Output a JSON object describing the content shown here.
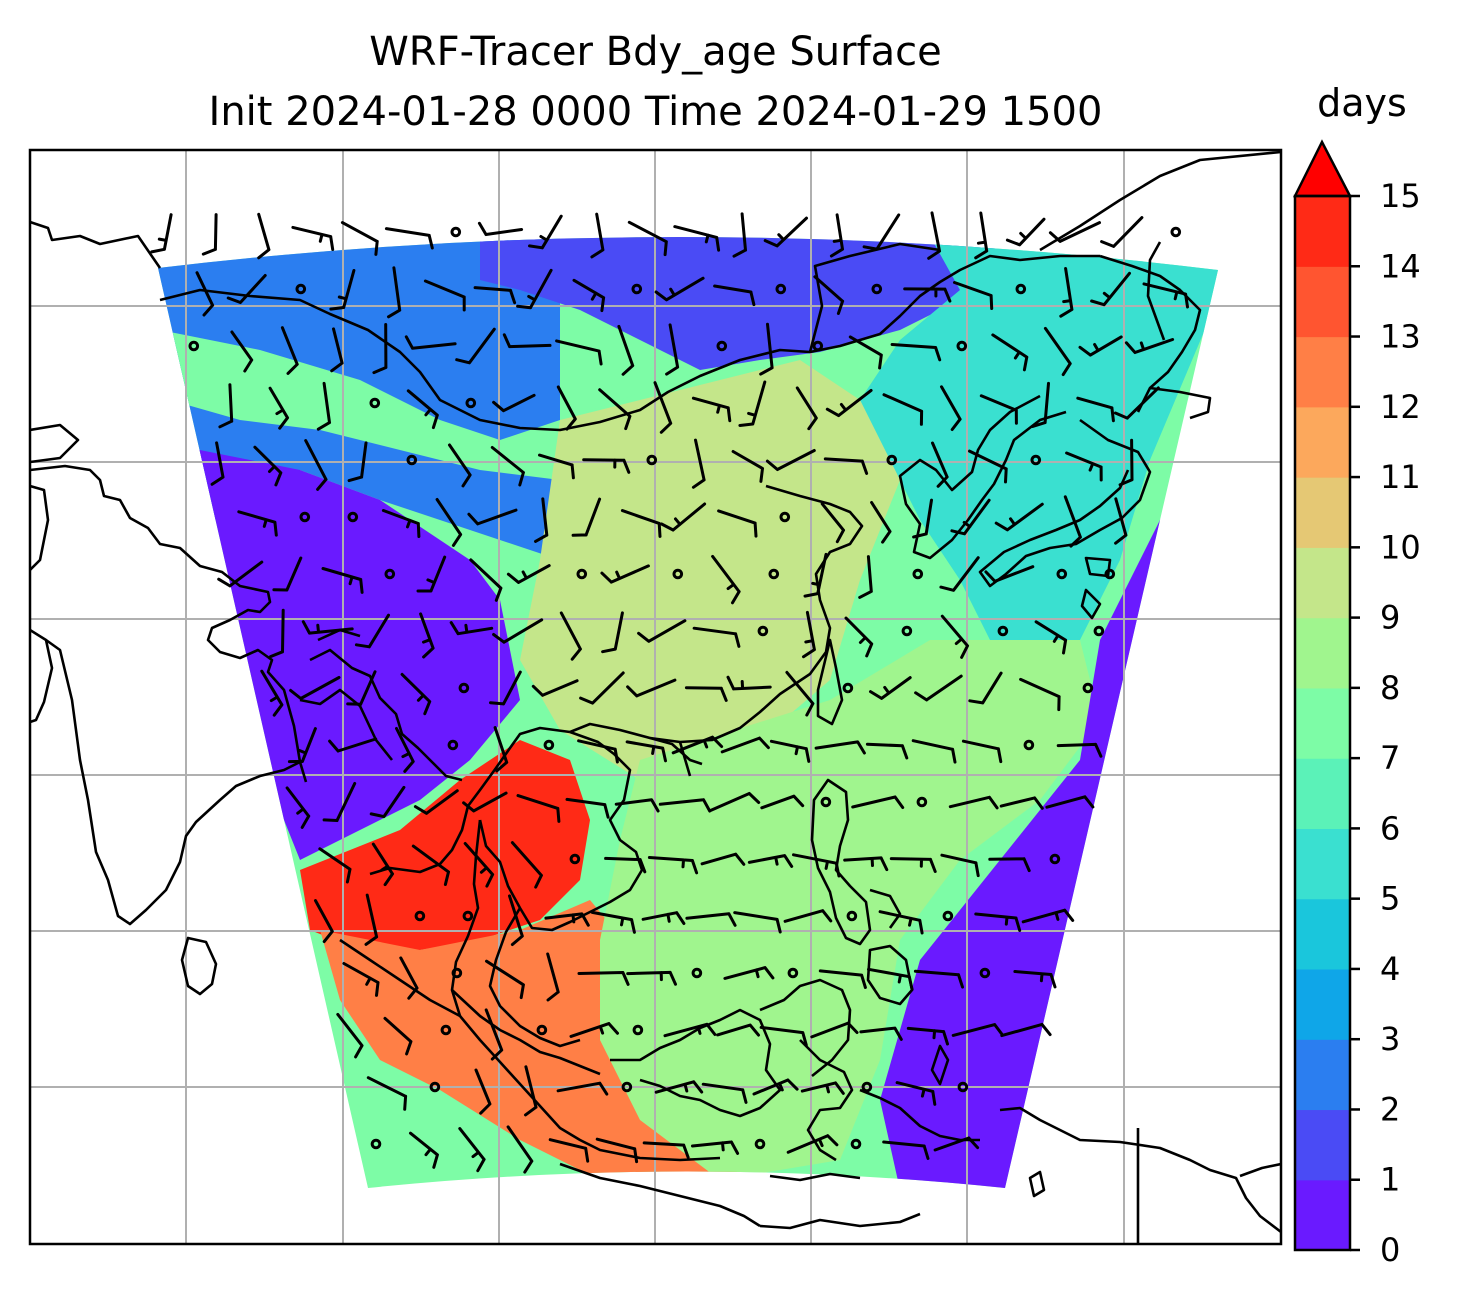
{
  "title": {
    "line1": "WRF-Tracer Bdy_age Surface",
    "line2": "Init 2024-01-28 0000 Time 2024-01-29 1500"
  },
  "colorbar": {
    "unit": "days",
    "min": 0,
    "max": 15,
    "extend": "max",
    "ticks": [
      "0",
      "1",
      "2",
      "3",
      "4",
      "5",
      "6",
      "7",
      "8",
      "9",
      "10",
      "11",
      "12",
      "13",
      "14",
      "15"
    ],
    "colors": [
      "#6a1aff",
      "#4a4bf5",
      "#2b7ef0",
      "#0fa6e8",
      "#1ac6dc",
      "#3ae0d0",
      "#5bf2b8",
      "#7dfca6",
      "#a0f58e",
      "#c4e68a",
      "#e5c874",
      "#fca85c",
      "#ff7f46",
      "#ff5530",
      "#ff2a16",
      "#ff0000"
    ],
    "extend_color": "#ff0000"
  },
  "map": {
    "gridlines": "on",
    "field": "Bdy_age",
    "level": "Surface",
    "regions": [
      {
        "name": "northwest-blue",
        "value": 2
      },
      {
        "name": "india-west-purple",
        "value": 0.5
      },
      {
        "name": "tibet-green-band",
        "value": 7
      },
      {
        "name": "mongolia-blue",
        "value": 1.5
      },
      {
        "name": "northeast-cyan",
        "value": 5
      },
      {
        "name": "south-china-green",
        "value": 9.5
      },
      {
        "name": "indochina-red",
        "value": 14.5
      },
      {
        "name": "sunda-orange",
        "value": 12
      },
      {
        "name": "scs-green",
        "value": 8
      },
      {
        "name": "philippine-sea-purple",
        "value": 0.5
      }
    ]
  }
}
